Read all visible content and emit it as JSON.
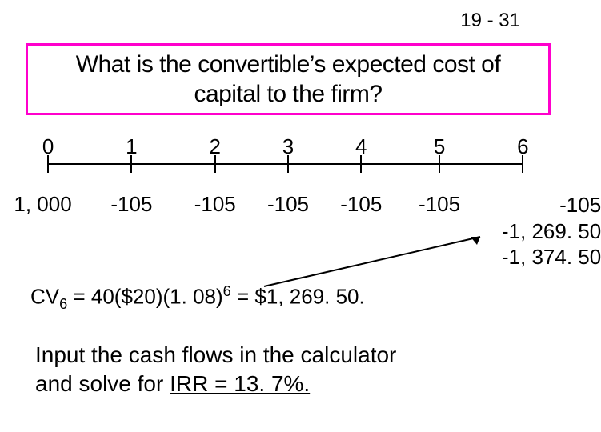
{
  "page_number": "19 - 31",
  "title": "What is the convertible’s expected cost of capital to the firm?",
  "title_border_color": "#ff00cc",
  "timeline": {
    "periods": [
      "0",
      "1",
      "2",
      "3",
      "4",
      "5",
      "6"
    ],
    "positions_pct": [
      4,
      20,
      36,
      50,
      64,
      79,
      95
    ],
    "line_start_pct": 4,
    "line_end_pct": 95,
    "tick_color": "#000000",
    "cash_items": [
      {
        "pos_pct": 3,
        "text": "1, 000"
      },
      {
        "pos_pct": 20,
        "text": "-105"
      },
      {
        "pos_pct": 36,
        "text": "-105"
      },
      {
        "pos_pct": 50,
        "text": "-105"
      },
      {
        "pos_pct": 64,
        "text": "-105"
      },
      {
        "pos_pct": 79,
        "text": "-105"
      }
    ],
    "end_stack": {
      "right_pct": 110,
      "lines": [
        "-105",
        "-1, 269. 50",
        "-1, 374. 50"
      ]
    }
  },
  "formula": {
    "prefix": "CV",
    "sub": "6",
    "mid1": " = 40($20)(1. 08)",
    "sup": "6",
    "mid2": " = $1, 269. 50."
  },
  "footer": {
    "line1": "Input the cash flows in the calculator",
    "line2a": "and solve for ",
    "line2b": "IRR = 13. 7%."
  },
  "colors": {
    "background": "#ffffff",
    "text": "#000000"
  }
}
